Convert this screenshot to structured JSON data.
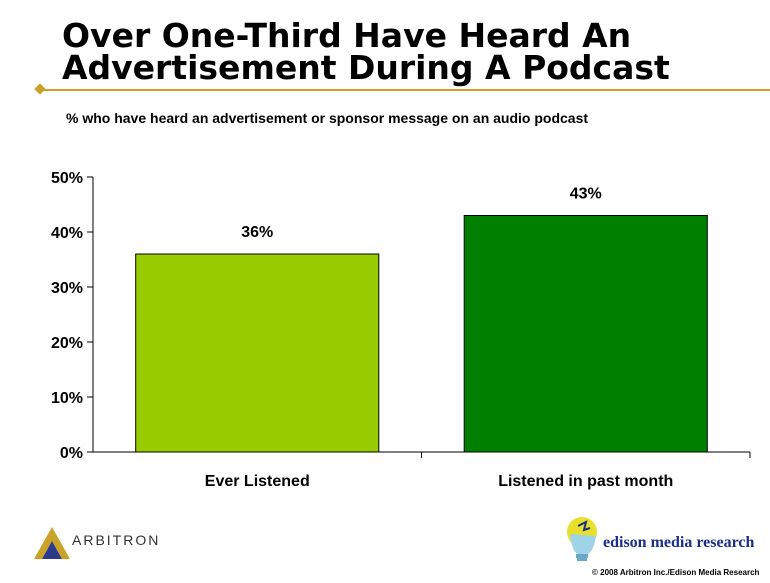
{
  "header": {
    "title_line1": "Over One-Third Have Heard An",
    "title_line2": "Advertisement During A Podcast",
    "subtitle": "% who have heard an advertisement or sponsor message on an audio podcast"
  },
  "chart_data": {
    "type": "bar",
    "categories": [
      "Ever Listened",
      "Listened in past month"
    ],
    "values": [
      36,
      43
    ],
    "value_labels": [
      "36%",
      "43%"
    ],
    "ylim": [
      0,
      50
    ],
    "yticks": [
      0,
      10,
      20,
      30,
      40,
      50
    ],
    "ytick_labels": [
      "0%",
      "10%",
      "20%",
      "30%",
      "40%",
      "50%"
    ],
    "bar_colors": [
      "#99cc00",
      "#008000"
    ],
    "grid": false,
    "legend": "none"
  },
  "footer": {
    "left_logo_text": "ARBITRON",
    "right_logo_text": "edison media research",
    "copyright": "© 2008 Arbitron Inc./Edison Media Research"
  },
  "colors": {
    "accent_rule": "#c9a227",
    "edison_blue": "#1a2f8a"
  }
}
